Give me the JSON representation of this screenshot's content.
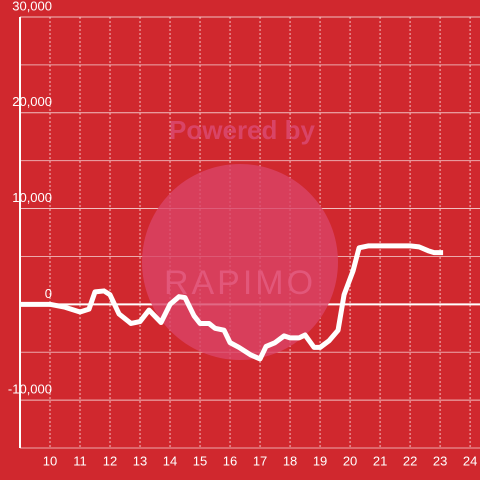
{
  "chart_data": {
    "type": "line",
    "watermark": [
      "Powered by",
      "RAPIMO"
    ],
    "x": [
      9.0,
      9.5,
      10.0,
      10.5,
      11.0,
      11.3,
      11.5,
      11.8,
      12.0,
      12.3,
      12.7,
      13.0,
      13.3,
      13.7,
      14.0,
      14.3,
      14.5,
      14.8,
      15.0,
      15.3,
      15.5,
      15.8,
      16.0,
      16.3,
      16.7,
      17.0,
      17.2,
      17.5,
      17.8,
      18.0,
      18.3,
      18.5,
      18.8,
      19.0,
      19.3,
      19.6,
      19.8,
      20.1,
      20.3,
      20.6,
      21.0,
      21.5,
      22.0,
      22.3,
      22.6,
      22.8,
      23.1
    ],
    "series": [
      {
        "color": "#ffffff",
        "values": [
          0,
          0,
          0,
          -300,
          -800,
          -500,
          1300,
          1400,
          1000,
          -1000,
          -2000,
          -1800,
          -600,
          -1900,
          0,
          800,
          700,
          -1200,
          -2000,
          -2000,
          -2500,
          -2700,
          -4000,
          -4500,
          -5300,
          -5700,
          -4400,
          -4000,
          -3300,
          -3500,
          -3500,
          -3200,
          -4500,
          -4500,
          -3800,
          -2700,
          1000,
          3500,
          5900,
          6100,
          6100,
          6100,
          6100,
          6000,
          5600,
          5400,
          5400
        ]
      }
    ],
    "xlim": [
      9,
      24.33
    ],
    "xticks": [
      10,
      11,
      12,
      13,
      14,
      15,
      16,
      17,
      18,
      19,
      20,
      21,
      22,
      23,
      24
    ],
    "ylim": [
      -15000,
      30000
    ],
    "yticks": [
      {
        "value": -10000,
        "label": "-10,000"
      },
      0,
      {
        "value": 10000,
        "label": "10,000"
      },
      {
        "value": 20000,
        "label": "20,000"
      },
      {
        "value": 30000,
        "label": "30,000"
      }
    ],
    "ygrid": [
      -15000,
      -5000,
      5000,
      15000,
      25000
    ],
    "grid": true,
    "background": "#d0282e"
  }
}
